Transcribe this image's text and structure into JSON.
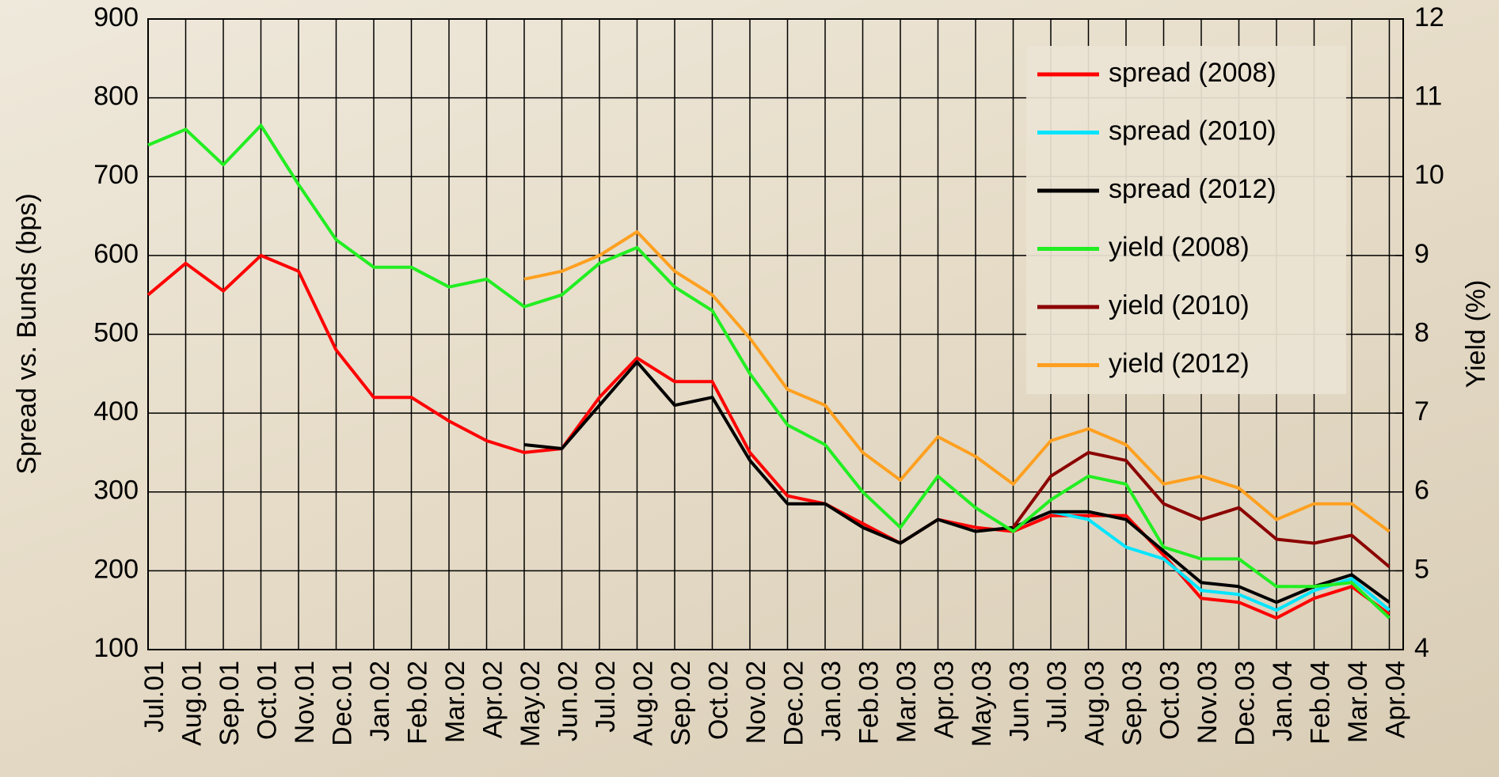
{
  "chart_data": {
    "type": "line",
    "y_label": "Spread vs. Bunds (bps)",
    "y2_label": "Yield (%)",
    "categories": [
      "Jul.01",
      "Aug.01",
      "Sep.01",
      "Oct.01",
      "Nov.01",
      "Dec.01",
      "Jan.02",
      "Feb.02",
      "Mar.02",
      "Apr.02",
      "May.02",
      "Jun.02",
      "Jul.02",
      "Aug.02",
      "Sep.02",
      "Oct.02",
      "Nov.02",
      "Dec.02",
      "Jan.03",
      "Feb.03",
      "Mar.03",
      "Apr.03",
      "May.03",
      "Jun.03",
      "Jul.03",
      "Aug.03",
      "Sep.03",
      "Oct.03",
      "Nov.03",
      "Dec.03",
      "Jan.04",
      "Feb.04",
      "Mar.04",
      "Apr.04"
    ],
    "ylim": [
      100,
      900
    ],
    "yticks": [
      100,
      200,
      300,
      400,
      500,
      600,
      700,
      800,
      900
    ],
    "y2lim": [
      4,
      12
    ],
    "y2ticks": [
      4,
      5,
      6,
      7,
      8,
      9,
      10,
      11,
      12
    ],
    "grid": true,
    "legend": "top-right",
    "series": [
      {
        "name": "spread (2008)",
        "color": "#ff0000",
        "values": [
          550,
          590,
          555,
          600,
          580,
          480,
          420,
          420,
          390,
          365,
          350,
          355,
          420,
          470,
          440,
          440,
          350,
          295,
          285,
          260,
          235,
          265,
          255,
          250,
          270,
          270,
          270,
          220,
          165,
          160,
          140,
          165,
          180,
          145
        ]
      },
      {
        "name": "spread (2010)",
        "color": "#00e5ff",
        "values": [
          null,
          null,
          null,
          null,
          null,
          null,
          null,
          null,
          null,
          null,
          null,
          null,
          null,
          null,
          null,
          null,
          null,
          null,
          null,
          null,
          null,
          null,
          null,
          255,
          275,
          265,
          230,
          215,
          175,
          170,
          150,
          175,
          190,
          150
        ]
      },
      {
        "name": "spread (2012)",
        "color": "#000000",
        "values": [
          null,
          null,
          null,
          null,
          null,
          null,
          null,
          null,
          null,
          null,
          360,
          355,
          410,
          465,
          410,
          420,
          340,
          285,
          285,
          255,
          235,
          265,
          250,
          255,
          275,
          275,
          265,
          225,
          185,
          180,
          160,
          180,
          195,
          160
        ]
      },
      {
        "name": "yield (2008)",
        "color": "#22ee22",
        "axis": "y2",
        "values": [
          10.4,
          10.6,
          10.15,
          10.65,
          9.9,
          9.2,
          8.85,
          8.85,
          8.6,
          8.7,
          8.35,
          8.5,
          8.9,
          9.1,
          8.6,
          8.3,
          7.5,
          6.85,
          6.6,
          6.0,
          5.55,
          6.2,
          5.8,
          5.5,
          5.9,
          6.2,
          6.1,
          5.3,
          5.15,
          5.15,
          4.8,
          4.8,
          4.85,
          4.4
        ]
      },
      {
        "name": "yield (2010)",
        "color": "#8b0000",
        "axis": "y2",
        "values": [
          null,
          null,
          null,
          null,
          null,
          null,
          null,
          null,
          null,
          null,
          null,
          null,
          null,
          null,
          null,
          null,
          null,
          null,
          null,
          null,
          null,
          null,
          null,
          5.55,
          6.2,
          6.5,
          6.4,
          5.85,
          5.65,
          5.8,
          5.4,
          5.35,
          5.45,
          5.05
        ]
      },
      {
        "name": "yield (2012)",
        "color": "#ffa020",
        "axis": "y2",
        "values": [
          null,
          null,
          null,
          null,
          null,
          null,
          null,
          null,
          null,
          null,
          8.7,
          8.8,
          9.0,
          9.3,
          8.8,
          8.5,
          7.95,
          7.3,
          7.1,
          6.5,
          6.15,
          6.7,
          6.45,
          6.1,
          6.65,
          6.8,
          6.6,
          6.1,
          6.2,
          6.05,
          5.65,
          5.85,
          5.85,
          5.5
        ]
      }
    ]
  }
}
